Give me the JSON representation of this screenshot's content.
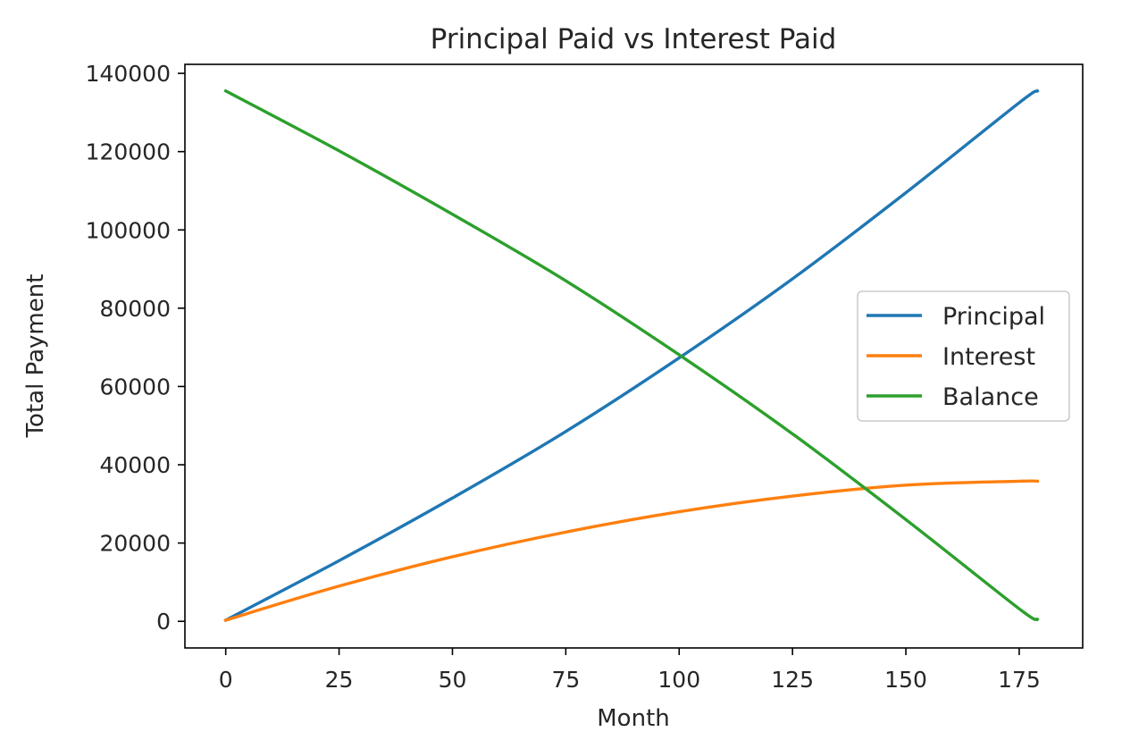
{
  "chart_data": {
    "type": "line",
    "title": "Principal Paid vs Interest Paid",
    "xlabel": "Month",
    "ylabel": "Total Payment",
    "xlim": [
      -9,
      189
    ],
    "ylim": [
      -6800,
      142300
    ],
    "xticks": [
      0,
      25,
      50,
      75,
      100,
      125,
      150,
      175
    ],
    "yticks": [
      0,
      20000,
      40000,
      60000,
      80000,
      100000,
      120000,
      140000
    ],
    "xtick_labels": [
      "0",
      "25",
      "50",
      "75",
      "100",
      "125",
      "150",
      "175"
    ],
    "ytick_labels": [
      "0",
      "20000",
      "40000",
      "60000",
      "80000",
      "100000",
      "120000",
      "140000"
    ],
    "grid": false,
    "legend": {
      "position": "center-right"
    },
    "series": [
      {
        "name": "Principal",
        "color": "#1f77b4",
        "x": [
          0,
          25,
          50,
          75,
          100,
          125,
          150,
          175,
          179
        ],
        "values": [
          300,
          15500,
          31500,
          48500,
          67300,
          87500,
          109500,
          132500,
          135500
        ]
      },
      {
        "name": "Interest",
        "color": "#ff7f0e",
        "x": [
          0,
          25,
          50,
          75,
          100,
          125,
          150,
          175,
          179
        ],
        "values": [
          300,
          9000,
          16500,
          22800,
          28000,
          32000,
          34800,
          35800,
          35800
        ]
      },
      {
        "name": "Balance",
        "color": "#2ca02c",
        "x": [
          0,
          25,
          50,
          75,
          100,
          125,
          150,
          175,
          179
        ],
        "values": [
          135500,
          120200,
          104000,
          87000,
          68100,
          47900,
          26000,
          3200,
          500
        ]
      }
    ]
  }
}
